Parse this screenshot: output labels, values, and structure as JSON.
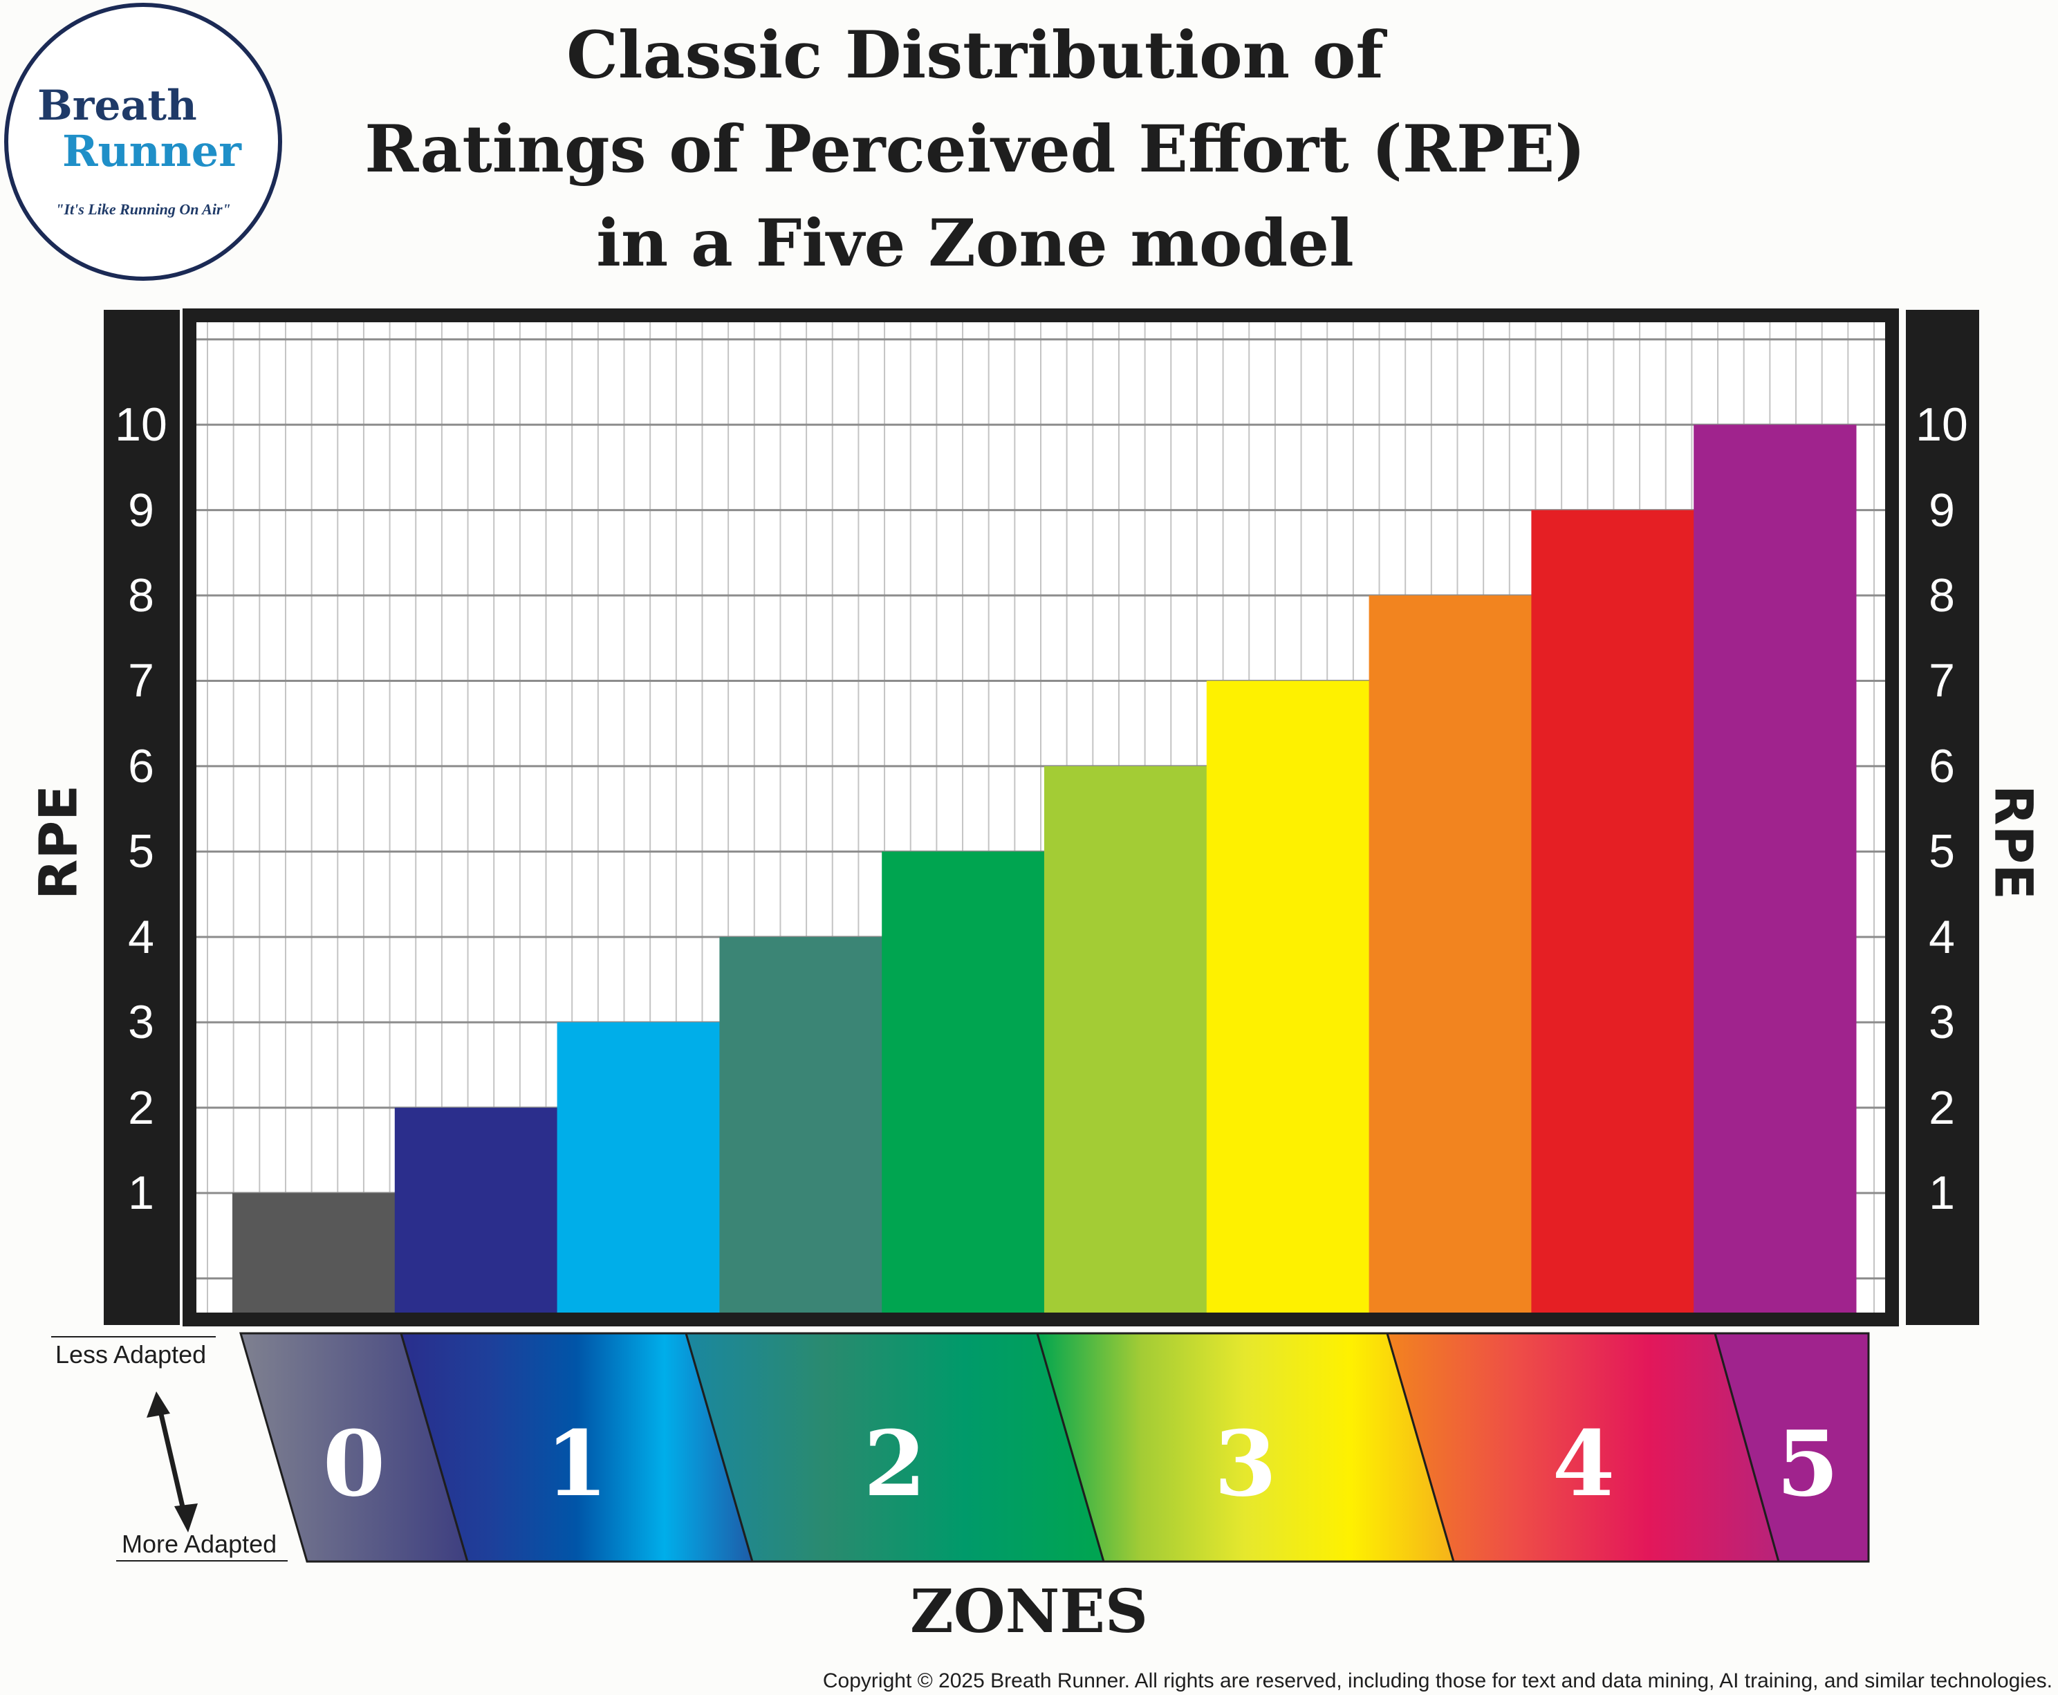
{
  "logo": {
    "line1": "Breath",
    "line2": "Runner",
    "tagline": "\"It's Like Running On Air\""
  },
  "title_lines": [
    "Classic Distribution of",
    "Ratings of Perceived Effort (RPE)",
    "in a Five Zone model"
  ],
  "colors": {
    "dark": "#1e1e1e",
    "grid_major": "#8c8c8c",
    "grid_minor": "#c4c4c4"
  },
  "chart_data": {
    "type": "bar",
    "title": "Classic Distribution of Ratings of Perceived Effort (RPE) in a Five Zone model",
    "xlabel": "ZONES",
    "ylabel": "RPE",
    "ylim": [
      -0.4,
      11.2
    ],
    "yticks": [
      1,
      2,
      3,
      4,
      5,
      6,
      7,
      8,
      9,
      10
    ],
    "grid": true,
    "values": [
      1,
      2,
      3,
      4,
      5,
      6,
      7,
      8,
      9,
      10
    ],
    "bar_colors": [
      "#585858",
      "#2b2e8c",
      "#00aee9",
      "#3b8575",
      "#00a550",
      "#a3cc35",
      "#fef100",
      "#f2841f",
      "#e51f24",
      "#a0238d"
    ],
    "zones": [
      {
        "label": "0",
        "colors": [
          "#7f8190",
          "#3e3f80"
        ]
      },
      {
        "label": "1",
        "colors": [
          "#2a2e8c",
          "#1e3f9a",
          "#0055a8",
          "#00aeea",
          "#1e5ca8"
        ]
      },
      {
        "label": "2",
        "colors": [
          "#1a87a0",
          "#2a8a6f",
          "#009a6a",
          "#00a550"
        ]
      },
      {
        "label": "3",
        "colors": [
          "#00a550",
          "#a3cc35",
          "#e6e82d",
          "#fef100",
          "#f5b21a"
        ]
      },
      {
        "label": "4",
        "colors": [
          "#f2841f",
          "#ee4d47",
          "#e3175a",
          "#b8237a"
        ]
      },
      {
        "label": "5",
        "colors": [
          "#a0238d",
          "#a0238d"
        ]
      }
    ]
  },
  "axis": {
    "left_label": "RPE",
    "right_label": "RPE"
  },
  "adaptation": {
    "top": "Less Adapted",
    "bottom": "More Adapted"
  },
  "zones_title": "ZONES",
  "copyright": "Copyright © 2025 Breath Runner. All rights are reserved, including those for text and data mining, AI training, and similar technologies."
}
